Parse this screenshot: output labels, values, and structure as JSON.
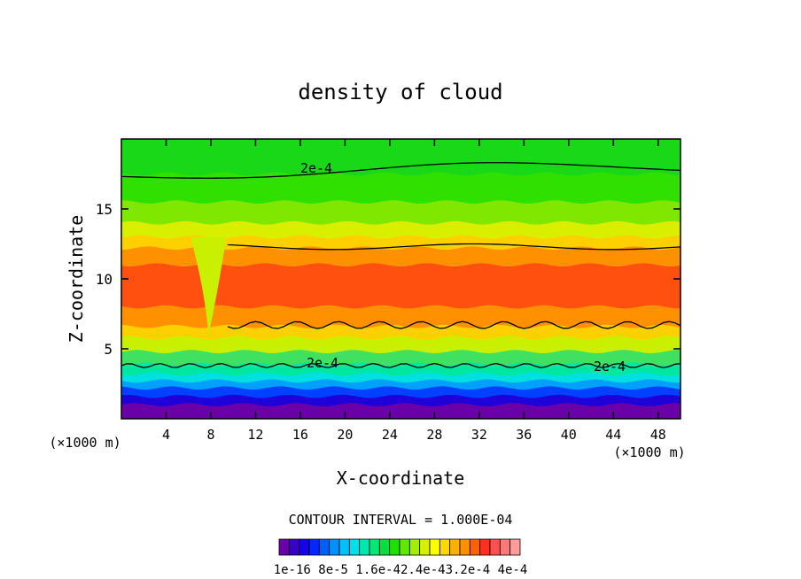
{
  "chart_data": {
    "type": "heatmap",
    "title": "density of cloud",
    "xlabel": "X-coordinate",
    "ylabel": "Z-coordinate",
    "x_unit": "(×1000 m)",
    "xlim": [
      0,
      50
    ],
    "ylim": [
      0,
      20
    ],
    "x_ticks": [
      4,
      8,
      12,
      16,
      20,
      24,
      28,
      32,
      36,
      40,
      44,
      48
    ],
    "y_ticks": [
      5,
      10,
      15
    ],
    "contour_interval_text": "CONTOUR INTERVAL = 1.000E-04",
    "contour_labels": [
      "2e-4",
      "2e-4",
      "2e-4"
    ],
    "colorbar_labels": [
      "1e-16",
      "8e-5",
      "1.6e-4",
      "2.4e-4",
      "3.2e-4",
      "4e-4"
    ],
    "colorbar_label_text": "1e-16  8e-5 1.6e-42.4e-43.2e-4 4e-4",
    "colorbar_colors": [
      "#6a00a8",
      "#3800c8",
      "#1800e8",
      "#0028ff",
      "#0060ff",
      "#0090ff",
      "#00c0ff",
      "#00e0e8",
      "#00e8b0",
      "#00e878",
      "#00e040",
      "#20e000",
      "#60e800",
      "#a0f000",
      "#d8f000",
      "#ffff00",
      "#ffd800",
      "#ffb000",
      "#ff9000",
      "#ff6000",
      "#ff3020",
      "#ff5050",
      "#ff7878",
      "#ff9c9c"
    ],
    "zones": [
      {
        "z_top": 1.0,
        "color": "#6a00a8"
      },
      {
        "z_top": 1.6,
        "color": "#2000d8"
      },
      {
        "z_top": 2.2,
        "color": "#0040ff"
      },
      {
        "z_top": 2.7,
        "color": "#00a0ff"
      },
      {
        "z_top": 3.2,
        "color": "#00e0e0"
      },
      {
        "z_top": 3.9,
        "color": "#00e8a0"
      },
      {
        "z_top": 4.8,
        "color": "#40e060"
      },
      {
        "z_top": 5.8,
        "color": "#c8f000"
      },
      {
        "z_top": 6.6,
        "color": "#ffd000"
      },
      {
        "z_top": 8.0,
        "color": "#ff9000"
      },
      {
        "z_top": 11.0,
        "color": "#ff5010"
      },
      {
        "z_top": 12.2,
        "color": "#ff9000"
      },
      {
        "z_top": 13.0,
        "color": "#ffd000"
      },
      {
        "z_top": 14.0,
        "color": "#d8f000"
      },
      {
        "z_top": 15.5,
        "color": "#80e800"
      },
      {
        "z_top": 17.5,
        "color": "#30e000"
      },
      {
        "z_top": 20.0,
        "color": "#18d818"
      }
    ]
  }
}
